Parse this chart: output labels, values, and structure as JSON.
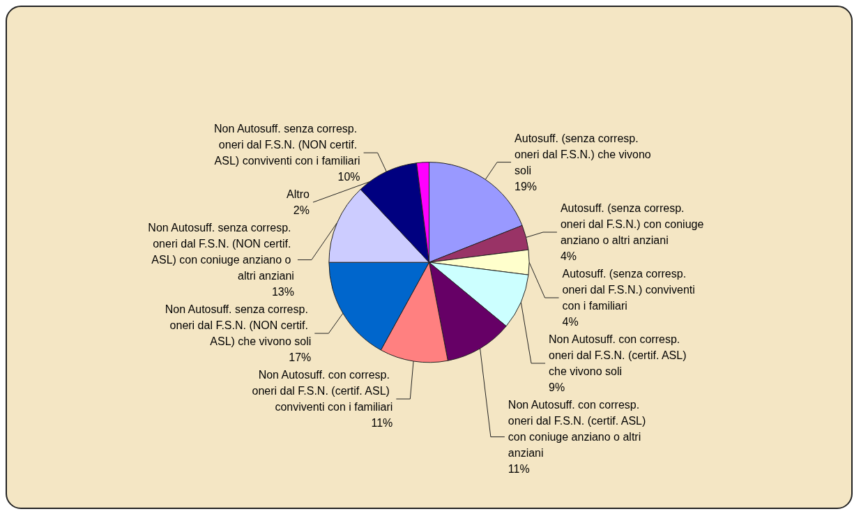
{
  "chart_data": {
    "type": "pie",
    "categories": [
      "Autosuff. (senza corresp. oneri dal F.S.N.) che vivono soli",
      "Autosuff. (senza corresp. oneri dal F.S.N.) con coniuge anziano o altri anziani",
      "Autosuff. (senza corresp. oneri dal F.S.N.) conviventi con i familiari",
      "Non Autosuff. con corresp. oneri dal F.S.N. (certif. ASL) che vivono soli",
      "Non Autosuff. con corresp. oneri dal F.S.N. (certif. ASL) con coniuge anziano o altri anziani",
      "Non Autosuff. con corresp. oneri dal F.S.N. (certif. ASL) conviventi con i familiari",
      "Non Autosuff. senza corresp. oneri dal F.S.N. (NON certif. ASL) che vivono soli",
      "Non Autosuff. senza corresp. oneri dal F.S.N. (NON certif. ASL) con coniuge anziano o altri anziani",
      "Non Autosuff. senza corresp. oneri dal F.S.N. (NON certif. ASL) conviventi con i familiari",
      "Altro"
    ],
    "values": [
      19,
      4,
      4,
      9,
      11,
      11,
      17,
      13,
      10,
      2
    ],
    "value_labels": [
      "19%",
      "4%",
      "4%",
      "9%",
      "11%",
      "11%",
      "17%",
      "13%",
      "10%",
      "2%"
    ],
    "colors": [
      "#9999ff",
      "#993366",
      "#ffffcc",
      "#ccffff",
      "#660066",
      "#ff8080",
      "#0066cc",
      "#ccccff",
      "#000080",
      "#ff00ff"
    ]
  }
}
